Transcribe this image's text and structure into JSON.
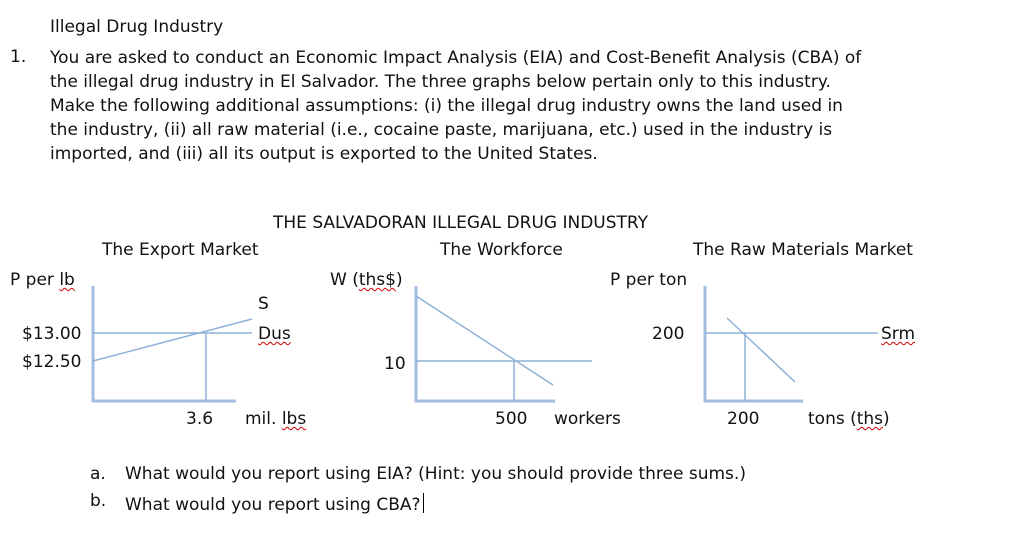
{
  "doc": {
    "heading": "Illegal Drug Industry",
    "item_number": "1.",
    "paragraph_lines": [
      "You are asked to conduct an Economic Impact Analysis (EIA) and Cost-Benefit Analysis (CBA) of",
      "the illegal drug industry in El Salvador.  The three graphs below pertain only to this industry.",
      "Make the following additional assumptions: (i) the illegal drug industry owns the land used in",
      "the industry, (ii) all raw material (i.e., cocaine paste, marijuana, etc.) used in the industry is",
      "imported, and (iii) all its output is exported to the United States."
    ],
    "figure_title": "THE SALVADORAN ILLEGAL DRUG INDUSTRY",
    "questions": [
      {
        "letter": "a.",
        "text": "What would you report using EIA?  (Hint:  you should provide three sums.)"
      },
      {
        "letter": "b.",
        "text": "What would you report using CBA?"
      }
    ]
  },
  "chart_data": [
    {
      "type": "line",
      "title": "The Export Market",
      "ylabel": "P per lb",
      "xlabel": "mil. lbs",
      "y_ticks": [
        "$13.00",
        "$12.50"
      ],
      "x_ticks": [
        "3.6"
      ],
      "series": [
        {
          "name": "S",
          "description": "upward sloping supply curve"
        },
        {
          "name": "Dus",
          "description": "horizontal demand at $13.00"
        }
      ],
      "points": [
        {
          "label": "equilibrium",
          "x": 3.6,
          "y": 13.0
        }
      ]
    },
    {
      "type": "line",
      "title": "The Workforce",
      "ylabel": "W (ths$)",
      "xlabel": "workers",
      "y_ticks": [
        "10"
      ],
      "x_ticks": [
        "500"
      ],
      "series": [
        {
          "name": "",
          "description": "downward sloping labor demand"
        },
        {
          "name": "",
          "description": "horizontal wage at 10"
        }
      ],
      "points": [
        {
          "label": "equilibrium",
          "x": 500,
          "y": 10
        }
      ]
    },
    {
      "type": "line",
      "title": "The Raw Materials Market",
      "ylabel": "P per ton",
      "xlabel": "tons (ths)",
      "y_ticks": [
        "200"
      ],
      "x_ticks": [
        "200"
      ],
      "series": [
        {
          "name": "Srm",
          "description": "horizontal supply at 200"
        },
        {
          "name": "",
          "description": "downward sloping demand"
        }
      ],
      "points": [
        {
          "label": "equilibrium",
          "x": 200,
          "y": 200
        }
      ]
    }
  ],
  "colors": {
    "axis": "#a3bde0",
    "curve": "#8fb0d8"
  }
}
